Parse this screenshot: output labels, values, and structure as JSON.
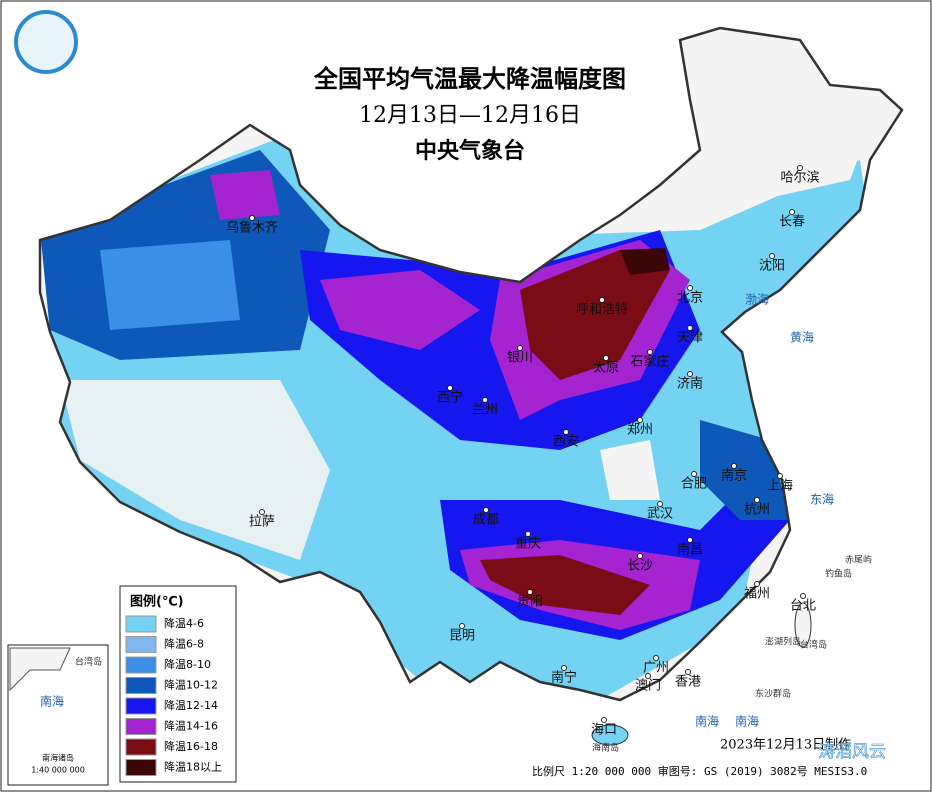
{
  "header": {
    "title": "全国平均气温最大降温幅度图",
    "subtitle": "12月13日—12月16日",
    "agency": "中央气象台"
  },
  "legend": {
    "title": "图例(℃)",
    "items": [
      {
        "label": "降温4-6",
        "color": "#74d2f2"
      },
      {
        "label": "降温6-8",
        "color": "#82b6ee"
      },
      {
        "label": "降温8-10",
        "color": "#3d8ee6"
      },
      {
        "label": "降温10-12",
        "color": "#0d58b8"
      },
      {
        "label": "降温12-14",
        "color": "#1616ee"
      },
      {
        "label": "降温14-16",
        "color": "#a424d2"
      },
      {
        "label": "降温16-18",
        "color": "#7a0c16"
      },
      {
        "label": "降温18以上",
        "color": "#3b0606"
      }
    ]
  },
  "cities": [
    "乌鲁木齐",
    "哈尔滨",
    "长春",
    "沈阳",
    "北京",
    "天津",
    "呼和浩特",
    "石家庄",
    "太原",
    "银川",
    "济南",
    "西宁",
    "兰州",
    "西安",
    "郑州",
    "合肥",
    "南京",
    "上海",
    "杭州",
    "武汉",
    "成都",
    "重庆",
    "南昌",
    "长沙",
    "拉萨",
    "贵阳",
    "福州",
    "台北",
    "昆明",
    "南宁",
    "广州",
    "澳门",
    "香港",
    "海口"
  ],
  "seas": [
    "渤海",
    "黄海",
    "东海",
    "南海",
    "南海"
  ],
  "islands": [
    "台湾岛",
    "赤尾屿",
    "钓鱼岛",
    "澎湖列岛",
    "东沙群岛",
    "海南岛"
  ],
  "inset": {
    "sea": "南海",
    "island": "台湾岛",
    "title": "南海诸岛",
    "scale": "1:40 000 000"
  },
  "footer": {
    "scale": "比例尺 1:20 000 000 审图号: GS (2019) 3082号 MESIS3.0",
    "date": "2023年12月13日制作",
    "watermark": "涛滔风云"
  }
}
